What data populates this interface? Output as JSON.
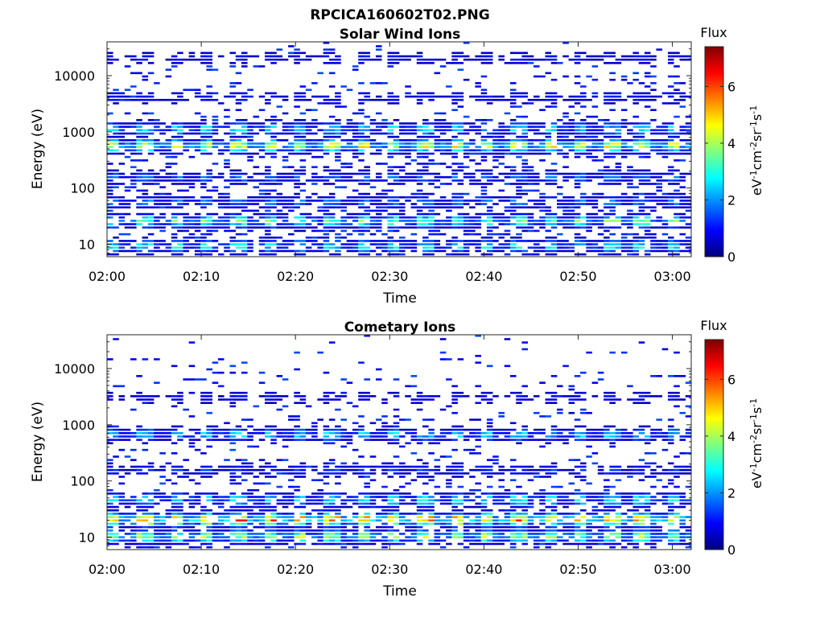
{
  "figure_title": "RPCICA160602T02.PNG",
  "colormap": [
    "#00007f",
    "#0000ff",
    "#007fff",
    "#00ffff",
    "#7fff7f",
    "#ffff00",
    "#ff7f00",
    "#ff0000",
    "#7f0000"
  ],
  "chart_data": [
    {
      "type": "heatmap",
      "title": "Solar Wind Ions",
      "xlabel": "Time",
      "ylabel": "Energy (eV)",
      "x_tick_labels": [
        "02:00",
        "02:10",
        "02:20",
        "02:30",
        "02:40",
        "02:50",
        "03:00"
      ],
      "x_tick_minutes": [
        0,
        10,
        20,
        30,
        40,
        50,
        60
      ],
      "xlim_minutes": [
        0,
        62
      ],
      "y_scale": "log",
      "y_tick_labels": [
        "10",
        "100",
        "1000",
        "10000"
      ],
      "y_tick_values": [
        10,
        100,
        1000,
        10000
      ],
      "ylim": [
        6,
        40000
      ],
      "colorbar": {
        "title": "Flux",
        "unit": "eV-1cm-2sr-1s-1",
        "tick_labels": [
          "0",
          "2",
          "4",
          "6"
        ],
        "tick_values": [
          0,
          2,
          4,
          6
        ],
        "range": [
          0,
          7.4
        ]
      },
      "energy_bands": [
        {
          "energy_ev": 9,
          "flux": 2.7
        },
        {
          "energy_ev": 25,
          "flux": 3.3
        },
        {
          "energy_ev": 55,
          "flux": 1.7
        },
        {
          "energy_ev": 150,
          "flux": 1.6
        },
        {
          "energy_ev": 550,
          "flux": 4.2
        },
        {
          "energy_ev": 1100,
          "flux": 2.6
        },
        {
          "energy_ev": 4000,
          "flux": 1.0
        },
        {
          "energy_ev": 20000,
          "flux": 1.0
        }
      ],
      "burst_interval_minutes": 3.3
    },
    {
      "type": "heatmap",
      "title": "Cometary Ions",
      "xlabel": "Time",
      "ylabel": "Energy (eV)",
      "x_tick_labels": [
        "02:00",
        "02:10",
        "02:20",
        "02:30",
        "02:40",
        "02:50",
        "03:00"
      ],
      "x_tick_minutes": [
        0,
        10,
        20,
        30,
        40,
        50,
        60
      ],
      "xlim_minutes": [
        0,
        62
      ],
      "y_scale": "log",
      "y_tick_labels": [
        "10",
        "100",
        "1000",
        "10000"
      ],
      "y_tick_values": [
        10,
        100,
        1000,
        10000
      ],
      "ylim": [
        6,
        40000
      ],
      "colorbar": {
        "title": "Flux",
        "unit": "eV-1cm-2sr-1s-1",
        "tick_labels": [
          "0",
          "2",
          "4",
          "6"
        ],
        "tick_values": [
          0,
          2,
          4,
          6
        ],
        "range": [
          0,
          7.4
        ]
      },
      "energy_bands": [
        {
          "energy_ev": 10,
          "flux": 3.8
        },
        {
          "energy_ev": 20,
          "flux": 5.2
        },
        {
          "energy_ev": 45,
          "flux": 2.8
        },
        {
          "energy_ev": 150,
          "flux": 1.2
        },
        {
          "energy_ev": 650,
          "flux": 2.4
        },
        {
          "energy_ev": 3000,
          "flux": 0.9
        }
      ],
      "burst_interval_minutes": 3.3
    }
  ]
}
